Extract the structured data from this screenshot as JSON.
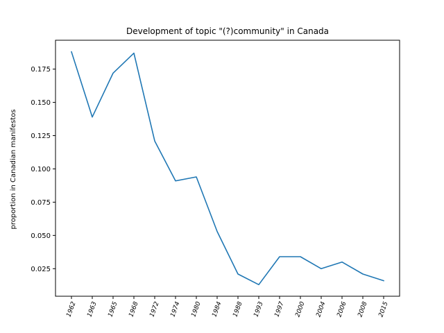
{
  "chart_data": {
    "type": "line",
    "title": "Development of topic \"(?)community\" in Canada",
    "xlabel": "",
    "ylabel": "proportion in Canadian manifestos",
    "categories": [
      "1962",
      "1963",
      "1965",
      "1968",
      "1972",
      "1974",
      "1980",
      "1984",
      "1988",
      "1993",
      "1997",
      "2000",
      "2004",
      "2006",
      "2008",
      "2015"
    ],
    "series": [
      {
        "values": [
          0.188,
          0.139,
          0.172,
          0.187,
          0.121,
          0.091,
          0.094,
          0.053,
          0.021,
          0.013,
          0.034,
          0.034,
          0.025,
          0.03,
          0.021,
          0.016
        ]
      }
    ],
    "yticks": [
      0.025,
      0.05,
      0.075,
      0.1,
      0.125,
      0.15,
      0.175
    ],
    "ytick_labels": [
      "0.025",
      "0.050",
      "0.075",
      "0.100",
      "0.125",
      "0.150",
      "0.175"
    ],
    "ylim": [
      0.0043,
      0.1967
    ],
    "grid": false,
    "line_color": "#1f77b4"
  }
}
